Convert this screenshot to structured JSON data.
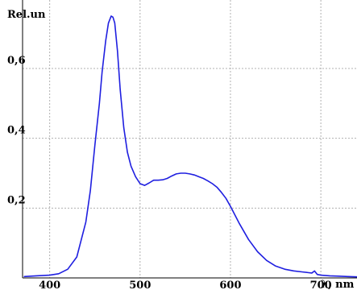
{
  "chart_data": {
    "type": "line",
    "title": "",
    "ylabel": "Rel.un",
    "xlabel": "λ, nm",
    "xlim": [
      370,
      740
    ],
    "ylim": [
      0,
      0.75
    ],
    "grid": true,
    "x_ticks": [
      400,
      500,
      600,
      700
    ],
    "y_ticks": [
      0.2,
      0.4,
      0.6
    ],
    "x_tick_labels": [
      "400",
      "500",
      "600",
      "700"
    ],
    "y_tick_labels": [
      "0,2",
      "0,4",
      "0,6"
    ],
    "series": [
      {
        "color": "#1f1fe0",
        "x": [
          372,
          385,
          400,
          410,
          420,
          430,
          440,
          445,
          450,
          455,
          458,
          462,
          465,
          468,
          470,
          472,
          475,
          478,
          482,
          486,
          490,
          495,
          500,
          505,
          510,
          515,
          520,
          525,
          530,
          535,
          540,
          545,
          550,
          555,
          560,
          565,
          570,
          575,
          580,
          585,
          590,
          595,
          600,
          605,
          610,
          620,
          630,
          640,
          650,
          660,
          670,
          680,
          690,
          693,
          696,
          700,
          710,
          720,
          730,
          740
        ],
        "y": [
          0.004,
          0.006,
          0.008,
          0.012,
          0.025,
          0.06,
          0.16,
          0.25,
          0.38,
          0.5,
          0.59,
          0.68,
          0.73,
          0.75,
          0.747,
          0.73,
          0.65,
          0.54,
          0.43,
          0.36,
          0.32,
          0.29,
          0.27,
          0.265,
          0.272,
          0.28,
          0.28,
          0.281,
          0.285,
          0.292,
          0.298,
          0.3,
          0.3,
          0.298,
          0.295,
          0.29,
          0.285,
          0.278,
          0.27,
          0.26,
          0.245,
          0.228,
          0.205,
          0.18,
          0.155,
          0.11,
          0.075,
          0.05,
          0.034,
          0.025,
          0.02,
          0.017,
          0.014,
          0.02,
          0.01,
          0.008,
          0.006,
          0.005,
          0.004,
          0.003
        ]
      }
    ]
  }
}
